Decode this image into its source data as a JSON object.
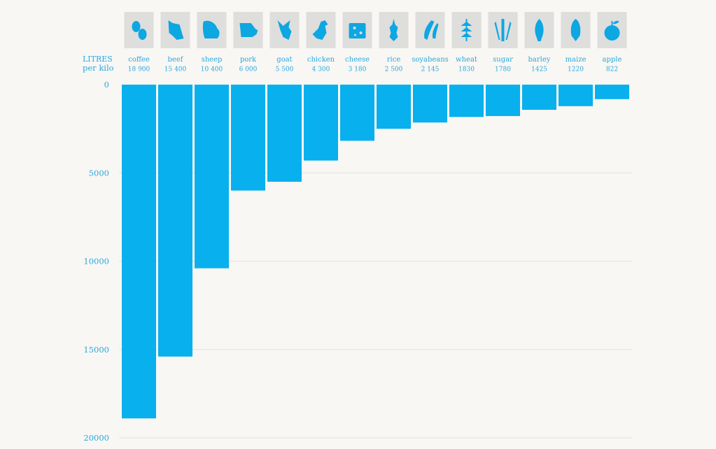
{
  "chart_data": {
    "type": "bar",
    "orientation": "vertical-hanging",
    "unit_label_line1": "LITRES",
    "unit_label_line2": "per kilo",
    "categories": [
      "coffee",
      "beef",
      "sheep",
      "pork",
      "goat",
      "chicken",
      "cheese",
      "rice",
      "soyabeans",
      "wheat",
      "sugar",
      "barley",
      "maize",
      "apple"
    ],
    "value_labels": [
      "18 900",
      "15 400",
      "10 400",
      "6 000",
      "5 500",
      "4 300",
      "3 180",
      "2 500",
      "2 145",
      "1830",
      "1780",
      "1425",
      "1220",
      "822"
    ],
    "values": [
      18900,
      15400,
      10400,
      6000,
      5500,
      4300,
      3180,
      2500,
      2145,
      1830,
      1780,
      1425,
      1220,
      822
    ],
    "icons": [
      "coffee-bean-icon",
      "cow-icon",
      "sheep-icon",
      "pig-icon",
      "goat-icon",
      "chicken-icon",
      "cheese-icon",
      "rice-icon",
      "soybean-icon",
      "wheat-icon",
      "sugarcane-icon",
      "barley-icon",
      "maize-icon",
      "apple-icon"
    ],
    "y_ticks": [
      "0",
      "5000",
      "10000",
      "15000",
      "20000"
    ],
    "y_tick_values": [
      0,
      5000,
      10000,
      15000,
      20000
    ],
    "ylim": [
      0,
      20000
    ],
    "grid": true,
    "colors": {
      "bar": "#08b0ed",
      "text": "#2aa7dc",
      "icon_bg": "#dededd",
      "icon_fg": "#0da7e2",
      "grid": "#e2e2e0"
    }
  }
}
